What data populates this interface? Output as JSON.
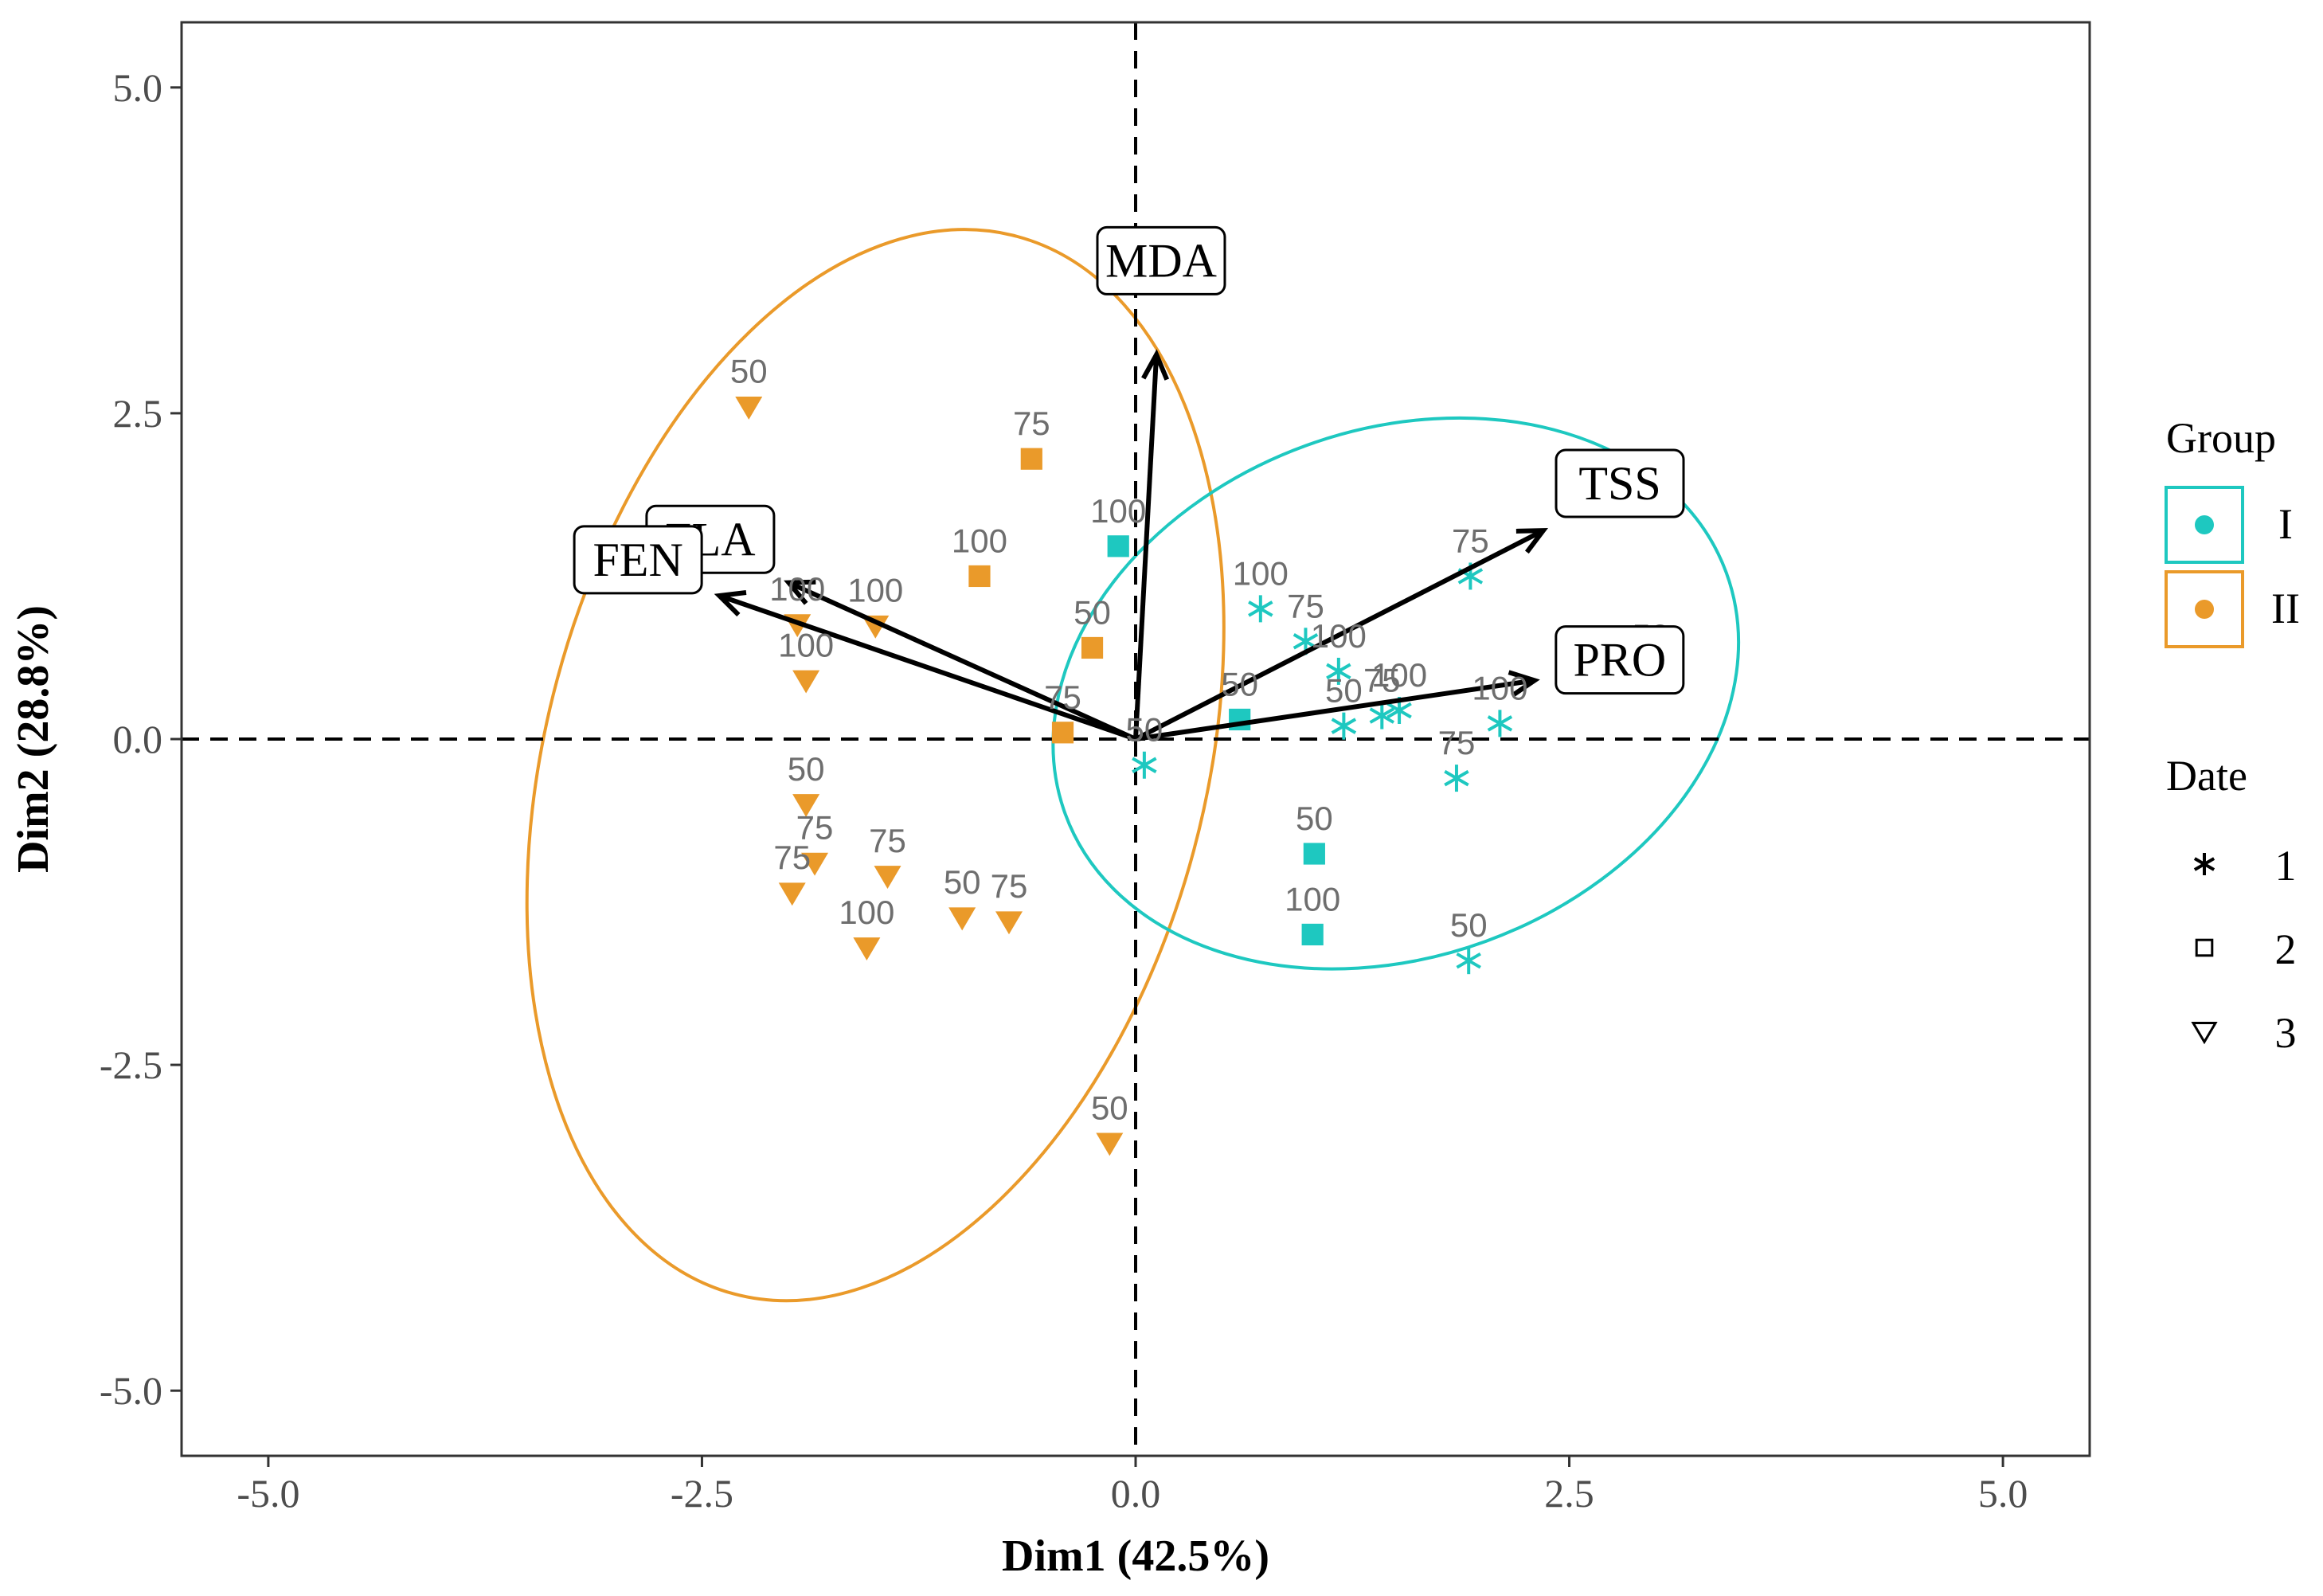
{
  "chart_data": {
    "type": "scatter",
    "subtype": "pca-biplot",
    "xlabel": "Dim1 (42.5%)",
    "ylabel": "Dim2 (28.8%)",
    "xlim": [
      -5.5,
      5.5
    ],
    "ylim": [
      -5.5,
      5.5
    ],
    "xticks": [
      -5.0,
      -2.5,
      0.0,
      2.5,
      5.0
    ],
    "xtick_labels": [
      "-5.0",
      "-2.5",
      "0.0",
      "2.5",
      "5.0"
    ],
    "yticks": [
      -5.0,
      -2.5,
      0.0,
      2.5,
      5.0
    ],
    "ytick_labels": [
      "-5.0",
      "-2.5",
      "0.0",
      "2.5",
      "5.0"
    ],
    "grid": false,
    "colors": {
      "I": "#1ec8c0",
      "II": "#ea9a2a"
    },
    "legend": {
      "placement": "right",
      "group_title": "Group",
      "groups": [
        "I",
        "II"
      ],
      "date_title": "Date",
      "dates": [
        {
          "label": "1",
          "shape": "asterisk"
        },
        {
          "label": "2",
          "shape": "square"
        },
        {
          "label": "3",
          "shape": "triangle-down"
        }
      ]
    },
    "ellipses": [
      {
        "group": "II",
        "cx": -1.5,
        "cy": -0.2,
        "sx": 1.9,
        "sy": 4.2,
        "angle": 15
      },
      {
        "group": "I",
        "cx": 1.5,
        "cy": 0.35,
        "sx": 1.52,
        "sy": 2.7,
        "angle": 70
      }
    ],
    "variables": [
      {
        "name": "MDA",
        "x": 0.12,
        "y": 2.95
      },
      {
        "name": "TSS",
        "x": 2.35,
        "y": 1.6
      },
      {
        "name": "PRO",
        "x": 2.3,
        "y": 0.45
      },
      {
        "name": "FLA",
        "x": -2.0,
        "y": 1.2
      },
      {
        "name": "FEN",
        "x": -2.4,
        "y": 1.1
      }
    ],
    "points": [
      {
        "group": "II",
        "date": 3,
        "label": "50",
        "x": -2.23,
        "y": 2.55
      },
      {
        "group": "II",
        "date": 2,
        "label": "75",
        "x": -0.6,
        "y": 2.15
      },
      {
        "group": "II",
        "date": 2,
        "label": "100",
        "x": -0.9,
        "y": 1.25
      },
      {
        "group": "II",
        "date": 3,
        "label": "100",
        "x": -1.5,
        "y": 0.87
      },
      {
        "group": "II",
        "date": 3,
        "label": "100",
        "x": -1.95,
        "y": 0.88
      },
      {
        "group": "II",
        "date": 3,
        "label": "100",
        "x": -1.9,
        "y": 0.45
      },
      {
        "group": "II",
        "date": 2,
        "label": "50",
        "x": -0.25,
        "y": 0.7
      },
      {
        "group": "II",
        "date": 2,
        "label": "75",
        "x": -0.42,
        "y": 0.05
      },
      {
        "group": "II",
        "date": 3,
        "label": "50",
        "x": -1.9,
        "y": -0.5
      },
      {
        "group": "II",
        "date": 3,
        "label": "75",
        "x": -1.85,
        "y": -0.95
      },
      {
        "group": "II",
        "date": 3,
        "label": "75",
        "x": -1.43,
        "y": -1.05
      },
      {
        "group": "II",
        "date": 3,
        "label": "75",
        "x": -1.98,
        "y": -1.18
      },
      {
        "group": "II",
        "date": 3,
        "label": "50",
        "x": -1.0,
        "y": -1.37
      },
      {
        "group": "II",
        "date": 3,
        "label": "75",
        "x": -0.73,
        "y": -1.4
      },
      {
        "group": "II",
        "date": 3,
        "label": "100",
        "x": -1.55,
        "y": -1.6
      },
      {
        "group": "II",
        "date": 3,
        "label": "50",
        "x": -0.15,
        "y": -3.1
      },
      {
        "group": "I",
        "date": 2,
        "label": "100",
        "x": -0.1,
        "y": 1.48
      },
      {
        "group": "I",
        "date": 2,
        "label": "50",
        "x": 0.6,
        "y": 0.15
      },
      {
        "group": "I",
        "date": 1,
        "label": "50",
        "x": 0.05,
        "y": -0.2
      },
      {
        "group": "I",
        "date": 2,
        "label": "50",
        "x": 1.03,
        "y": -0.88
      },
      {
        "group": "I",
        "date": 2,
        "label": "100",
        "x": 1.02,
        "y": -1.5
      },
      {
        "group": "I",
        "date": 1,
        "label": "100",
        "x": 0.72,
        "y": 1.0
      },
      {
        "group": "I",
        "date": 1,
        "label": "75",
        "x": 0.98,
        "y": 0.75
      },
      {
        "group": "I",
        "date": 1,
        "label": "100",
        "x": 1.17,
        "y": 0.52
      },
      {
        "group": "I",
        "date": 1,
        "label": "50",
        "x": 1.2,
        "y": 0.1
      },
      {
        "group": "I",
        "date": 1,
        "label": "75",
        "x": 1.42,
        "y": 0.18
      },
      {
        "group": "I",
        "date": 1,
        "label": "100",
        "x": 1.52,
        "y": 0.22
      },
      {
        "group": "I",
        "date": 1,
        "label": "75",
        "x": 1.93,
        "y": 1.25
      },
      {
        "group": "I",
        "date": 1,
        "label": "75",
        "x": 1.85,
        "y": -0.3
      },
      {
        "group": "I",
        "date": 1,
        "label": "100",
        "x": 2.1,
        "y": 0.12
      },
      {
        "group": "I",
        "date": 1,
        "label": "50",
        "x": 2.97,
        "y": 0.52
      },
      {
        "group": "I",
        "date": 1,
        "label": "50",
        "x": 1.92,
        "y": -1.7
      }
    ],
    "label_offsets_note": ""
  }
}
